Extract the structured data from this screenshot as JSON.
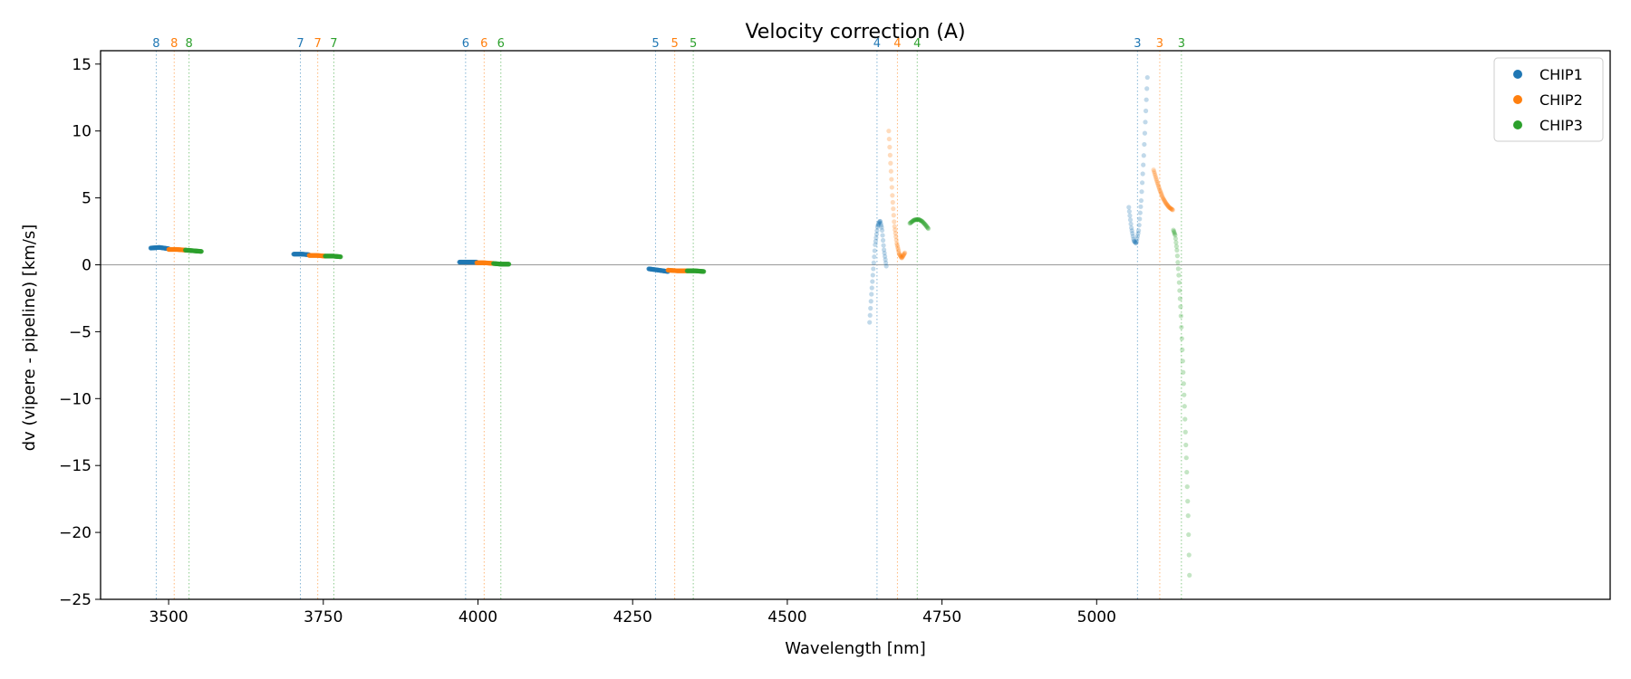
{
  "chart_data": {
    "type": "scatter",
    "title": "Velocity correction (A)",
    "xlabel": "Wavelength [nm]",
    "ylabel": "dv (vipere - pipeline) [km/s]",
    "xlim": [
      3390,
      5830
    ],
    "ylim": [
      -25,
      16
    ],
    "xticks": [
      3500,
      3750,
      4000,
      4250,
      4500,
      4750,
      5000
    ],
    "yticks": [
      15,
      10,
      5,
      0,
      -5,
      -10,
      -15,
      -20,
      -25
    ],
    "zero_line": 0,
    "grid": false,
    "legend": {
      "placement": "top-right",
      "entries": [
        "CHIP1",
        "CHIP2",
        "CHIP3"
      ]
    },
    "series": [
      {
        "name": "CHIP1",
        "color": "#1f77b4",
        "order_markers": [
          {
            "order": "8",
            "x": 3480
          },
          {
            "order": "7",
            "x": 3713
          },
          {
            "order": "6",
            "x": 3980
          },
          {
            "order": "5",
            "x": 4287
          },
          {
            "order": "4",
            "x": 4645
          },
          {
            "order": "3",
            "x": 5066
          }
        ],
        "segments": [
          {
            "order": "8",
            "xrange": [
              3471,
              3500
            ],
            "points": [
              [
                3471,
                1.25
              ],
              [
                3485,
                1.3
              ],
              [
                3500,
                1.2
              ]
            ]
          },
          {
            "order": "7",
            "xrange": [
              3702,
              3727
            ],
            "points": [
              [
                3702,
                0.8
              ],
              [
                3715,
                0.8
              ],
              [
                3727,
                0.75
              ]
            ]
          },
          {
            "order": "6",
            "xrange": [
              3970,
              3998
            ],
            "points": [
              [
                3970,
                0.2
              ],
              [
                3985,
                0.2
              ],
              [
                3998,
                0.2
              ]
            ]
          },
          {
            "order": "5",
            "xrange": [
              4276,
              4307
            ],
            "points": [
              [
                4276,
                -0.3
              ],
              [
                4292,
                -0.4
              ],
              [
                4307,
                -0.5
              ]
            ]
          },
          {
            "order": "4",
            "xrange": [
              4633,
              4660
            ],
            "points": [
              [
                4633,
                -4.3
              ],
              [
                4636,
                -2.2
              ],
              [
                4639,
                -0.3
              ],
              [
                4642,
                1.5
              ],
              [
                4646,
                2.9
              ],
              [
                4650,
                3.3
              ],
              [
                4653,
                2.7
              ],
              [
                4656,
                1.2
              ],
              [
                4660,
                -0.1
              ]
            ]
          },
          {
            "order": "3",
            "xrange": [
              5052,
              5082
            ],
            "points": [
              [
                5052,
                4.3
              ],
              [
                5056,
                2.8
              ],
              [
                5060,
                1.8
              ],
              [
                5064,
                1.6
              ],
              [
                5068,
                2.6
              ],
              [
                5072,
                4.8
              ],
              [
                5076,
                8.0
              ],
              [
                5079,
                11.0
              ],
              [
                5082,
                14.0
              ]
            ]
          }
        ]
      },
      {
        "name": "CHIP2",
        "color": "#ff7f0e",
        "order_markers": [
          {
            "order": "8",
            "x": 3509
          },
          {
            "order": "7",
            "x": 3741
          },
          {
            "order": "6",
            "x": 4010
          },
          {
            "order": "5",
            "x": 4318
          },
          {
            "order": "4",
            "x": 4678
          },
          {
            "order": "3",
            "x": 5102
          }
        ],
        "segments": [
          {
            "order": "8",
            "xrange": [
              3500,
              3527
            ],
            "points": [
              [
                3500,
                1.15
              ],
              [
                3513,
                1.15
              ],
              [
                3527,
                1.1
              ]
            ]
          },
          {
            "order": "7",
            "xrange": [
              3727,
              3753
            ],
            "points": [
              [
                3727,
                0.7
              ],
              [
                3740,
                0.7
              ],
              [
                3753,
                0.65
              ]
            ]
          },
          {
            "order": "6",
            "xrange": [
              3998,
              4025
            ],
            "points": [
              [
                3998,
                0.15
              ],
              [
                4011,
                0.15
              ],
              [
                4025,
                0.1
              ]
            ]
          },
          {
            "order": "5",
            "xrange": [
              4307,
              4338
            ],
            "points": [
              [
                4307,
                -0.4
              ],
              [
                4322,
                -0.45
              ],
              [
                4338,
                -0.45
              ]
            ]
          },
          {
            "order": "4",
            "xrange": [
              4664,
              4690
            ],
            "points": [
              [
                4664,
                10.0
              ],
              [
                4667,
                7.5
              ],
              [
                4670,
                5.0
              ],
              [
                4673,
                3.0
              ],
              [
                4677,
                1.6
              ],
              [
                4681,
                0.8
              ],
              [
                4685,
                0.5
              ],
              [
                4690,
                0.9
              ]
            ]
          },
          {
            "order": "3",
            "xrange": [
              5092,
              5123
            ],
            "points": [
              [
                5092,
                7.1
              ],
              [
                5097,
                6.3
              ],
              [
                5102,
                5.6
              ],
              [
                5107,
                5.0
              ],
              [
                5112,
                4.6
              ],
              [
                5117,
                4.3
              ],
              [
                5123,
                4.1
              ]
            ]
          }
        ]
      },
      {
        "name": "CHIP3",
        "color": "#2ca02c",
        "order_markers": [
          {
            "order": "8",
            "x": 3533
          },
          {
            "order": "7",
            "x": 3767
          },
          {
            "order": "6",
            "x": 4037
          },
          {
            "order": "5",
            "x": 4348
          },
          {
            "order": "4",
            "x": 4710
          },
          {
            "order": "3",
            "x": 5137
          }
        ],
        "segments": [
          {
            "order": "8",
            "xrange": [
              3527,
              3553
            ],
            "points": [
              [
                3527,
                1.1
              ],
              [
                3540,
                1.05
              ],
              [
                3553,
                1.0
              ]
            ]
          },
          {
            "order": "7",
            "xrange": [
              3753,
              3778
            ],
            "points": [
              [
                3753,
                0.65
              ],
              [
                3766,
                0.65
              ],
              [
                3778,
                0.6
              ]
            ]
          },
          {
            "order": "6",
            "xrange": [
              4025,
              4050
            ],
            "points": [
              [
                4025,
                0.1
              ],
              [
                4037,
                0.05
              ],
              [
                4050,
                0.05
              ]
            ]
          },
          {
            "order": "5",
            "xrange": [
              4338,
              4365
            ],
            "points": [
              [
                4338,
                -0.45
              ],
              [
                4351,
                -0.45
              ],
              [
                4365,
                -0.5
              ]
            ]
          },
          {
            "order": "4",
            "xrange": [
              4698,
              4728
            ],
            "points": [
              [
                4698,
                3.1
              ],
              [
                4705,
                3.35
              ],
              [
                4712,
                3.4
              ],
              [
                4718,
                3.25
              ],
              [
                4723,
                3.0
              ],
              [
                4728,
                2.7
              ]
            ]
          },
          {
            "order": "3",
            "xrange": [
              5124,
              5150
            ],
            "points": [
              [
                5124,
                2.6
              ],
              [
                5127,
                2.2
              ],
              [
                5130,
                1.0
              ],
              [
                5133,
                -1.0
              ],
              [
                5136,
                -3.5
              ],
              [
                5139,
                -7.0
              ],
              [
                5142,
                -10.5
              ],
              [
                5145,
                -14.5
              ],
              [
                5148,
                -19.0
              ],
              [
                5150,
                -23.2
              ]
            ]
          }
        ]
      }
    ]
  }
}
